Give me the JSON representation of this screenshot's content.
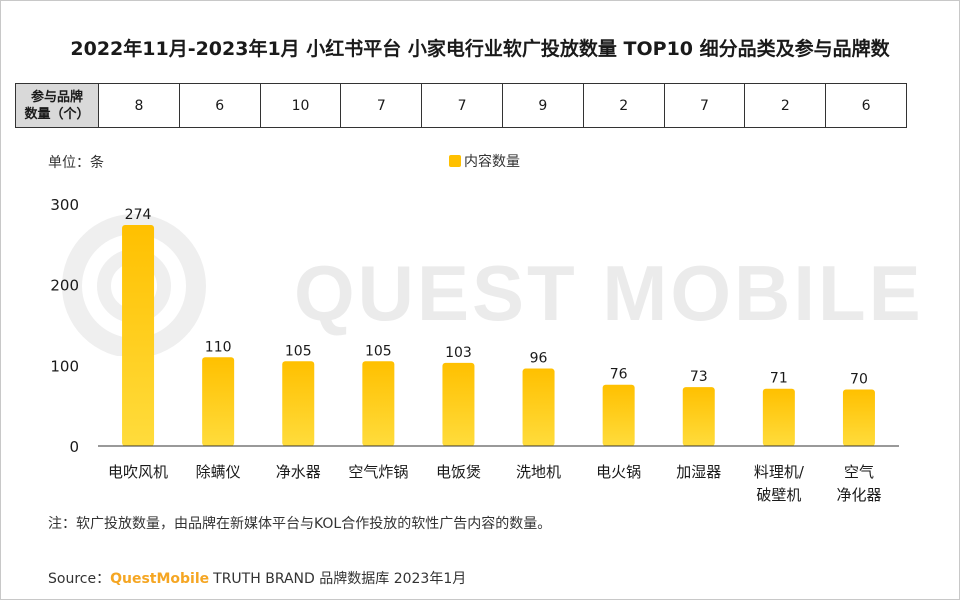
{
  "title": "2022年11月-2023年1月 小红书平台 小家电行业软广投放数量 TOP10 细分品类及参与品牌数",
  "brand_table": {
    "header_line1": "参与品牌",
    "header_line2": "数量（个）",
    "values": [
      "8",
      "6",
      "10",
      "7",
      "7",
      "9",
      "2",
      "7",
      "2",
      "6"
    ]
  },
  "unit_label": "单位：条",
  "watermark": "QUEST MOBILE",
  "note": "注：软广投放数量，由品牌在新媒体平台与KOL合作投放的软性广告内容的数量。",
  "source": {
    "prefix": "Source：",
    "brand": "QuestMobile",
    "rest": "TRUTH BRAND 品牌数据库 2023年1月"
  },
  "colors": {
    "bar_top": "#ffc000",
    "bar_bottom": "#ffdc3c",
    "axis": "#333333"
  },
  "chart_data": {
    "type": "bar",
    "categories": [
      "电吹风机",
      "除螨仪",
      "净水器",
      "空气炸锅",
      "电饭煲",
      "洗地机",
      "电火锅",
      "加湿器",
      "料理机/\n破壁机",
      "空气\n净化器"
    ],
    "series": [
      {
        "name": "内容数量",
        "values": [
          274,
          110,
          105,
          105,
          103,
          96,
          76,
          73,
          71,
          70
        ]
      }
    ],
    "yticks": [
      "300",
      "200",
      "100",
      "0"
    ],
    "ylim": [
      0,
      300
    ],
    "legend": "top-center",
    "grid": false
  }
}
